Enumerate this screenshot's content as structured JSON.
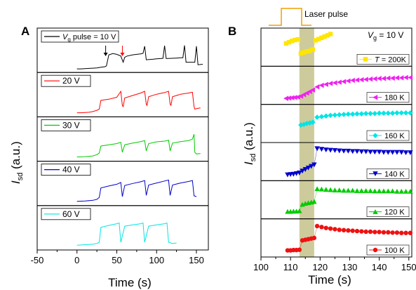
{
  "figure": {
    "panel_a_letter": "A",
    "panel_b_letter": "B",
    "laser_label": "Laser pulse",
    "vg_label_main": "V",
    "vg_label_sub": "g",
    "vg_label_rest": " = 10 V",
    "y_label_main": "I",
    "y_label_sub": "sd",
    "y_label_a_rest": " (a.u.)",
    "y_label_b_rest": " (a.u.)",
    "x_label_a": "Time (s)",
    "x_label_b": "Time (s)"
  },
  "chart_data": [
    {
      "type": "line",
      "panel": "A",
      "xlabel": "Time (s)",
      "ylabel": "Isd (a.u.)",
      "xlim": [
        -50,
        165
      ],
      "xticks": [
        "-50",
        "0",
        "50",
        "100",
        "150"
      ],
      "xtick_values": [
        -50,
        0,
        50,
        100,
        150
      ],
      "first_legend_prefix": "V",
      "first_legend_sub": "g",
      "first_legend_suffix": " pulse = 10 V",
      "series": [
        {
          "name": "",
          "legend": "10 V",
          "color": "#000000",
          "x": [
            0,
            5,
            10,
            15,
            20,
            25,
            30,
            35,
            37,
            40,
            45,
            50,
            55,
            58,
            60,
            63,
            70,
            75,
            80,
            83,
            85,
            87,
            95,
            100,
            105,
            108,
            110,
            112,
            120,
            125,
            130,
            133,
            135,
            137,
            145,
            148,
            150,
            152,
            158
          ],
          "y": [
            0.03,
            0.03,
            0.04,
            0.05,
            0.06,
            0.07,
            0.1,
            0.12,
            0.15,
            0.6,
            0.65,
            0.62,
            0.55,
            0.3,
            0.5,
            0.55,
            0.6,
            0.62,
            0.64,
            0.66,
            0.95,
            0.4,
            0.42,
            0.44,
            0.45,
            0.46,
            0.97,
            0.45,
            0.46,
            0.47,
            0.48,
            0.48,
            0.98,
            0.3,
            0.3,
            0.3,
            0.95,
            0.2,
            0.22
          ]
        },
        {
          "name": "",
          "legend": "20 V",
          "color": "#ff0000",
          "x": [
            0,
            5,
            10,
            15,
            20,
            25,
            28,
            30,
            40,
            50,
            55,
            57,
            58,
            60,
            70,
            80,
            85,
            87,
            88,
            90,
            100,
            110,
            115,
            117,
            118,
            120,
            130,
            140,
            145,
            147,
            148,
            150,
            155
          ],
          "y": [
            0.05,
            0.05,
            0.06,
            0.07,
            0.1,
            0.15,
            0.2,
            0.55,
            0.6,
            0.68,
            0.92,
            0.35,
            0.3,
            0.65,
            0.75,
            0.85,
            0.92,
            0.4,
            0.35,
            0.7,
            0.8,
            0.87,
            0.92,
            0.4,
            0.35,
            0.7,
            0.8,
            0.85,
            0.88,
            0.3,
            0.2,
            0.22,
            0.25
          ]
        },
        {
          "name": "",
          "legend": "30 V",
          "color": "#00cc00",
          "x": [
            0,
            10,
            20,
            25,
            28,
            30,
            40,
            50,
            55,
            57,
            60,
            70,
            80,
            85,
            87,
            90,
            100,
            110,
            115,
            117,
            120,
            130,
            140,
            145,
            147,
            148,
            150,
            155
          ],
          "y": [
            0.06,
            0.07,
            0.1,
            0.15,
            0.22,
            0.5,
            0.55,
            0.6,
            0.65,
            0.25,
            0.55,
            0.62,
            0.68,
            0.72,
            0.3,
            0.6,
            0.67,
            0.7,
            0.74,
            0.3,
            0.62,
            0.68,
            0.72,
            0.78,
            0.98,
            0.25,
            0.18,
            0.2
          ]
        },
        {
          "name": "",
          "legend": "40 V",
          "color": "#0000cc",
          "x": [
            0,
            10,
            20,
            25,
            28,
            30,
            40,
            50,
            55,
            57,
            60,
            70,
            80,
            85,
            87,
            90,
            100,
            110,
            115,
            117,
            120,
            130,
            140,
            145,
            147,
            150
          ],
          "y": [
            0.06,
            0.07,
            0.1,
            0.14,
            0.22,
            0.6,
            0.68,
            0.75,
            0.82,
            0.25,
            0.7,
            0.78,
            0.85,
            0.9,
            0.3,
            0.72,
            0.8,
            0.88,
            0.92,
            0.3,
            0.72,
            0.8,
            0.86,
            0.9,
            0.28,
            0.25
          ]
        },
        {
          "name": "",
          "legend": "60 V",
          "color": "#00e5e5",
          "x": [
            0,
            10,
            20,
            25,
            28,
            30,
            40,
            50,
            53,
            55,
            60,
            70,
            80,
            83,
            85,
            90,
            100,
            110,
            113,
            115,
            120,
            125
          ],
          "y": [
            0.08,
            0.1,
            0.12,
            0.15,
            0.2,
            0.8,
            0.88,
            0.95,
            0.98,
            0.2,
            0.85,
            0.9,
            0.95,
            0.98,
            0.2,
            0.85,
            0.9,
            0.95,
            0.98,
            0.2,
            0.15,
            0.17
          ]
        }
      ]
    },
    {
      "type": "scatter",
      "panel": "B",
      "xlabel": "Time (s)",
      "ylabel": "Isd (a.u.)",
      "xlim": [
        100,
        151
      ],
      "xticks": [
        "100",
        "110",
        "120",
        "130",
        "140",
        "150"
      ],
      "xtick_values": [
        100,
        110,
        120,
        130,
        140,
        150
      ],
      "laser_span": [
        113,
        118
      ],
      "first_legend_prefix": "T",
      "first_legend_suffix": " = 200K",
      "series": [
        {
          "name": "",
          "legend": "200K",
          "color": "#ffe600",
          "marker": "square",
          "x": [
            108.5,
            109.5,
            110.5,
            111.5,
            112.5,
            113.5,
            114.5,
            115.5,
            116.5,
            117.5,
            118.5,
            119.5,
            120.5,
            121.5,
            122.5,
            123.5
          ],
          "y": [
            0.62,
            0.66,
            0.7,
            0.73,
            0.75,
            0.3,
            0.33,
            0.36,
            0.38,
            0.42,
            0.72,
            0.76,
            0.8,
            0.84,
            0.88,
            0.92
          ]
        },
        {
          "name": "",
          "legend": "180 K",
          "color": "#ee22ee",
          "marker": "triangle-left",
          "x": [
            108.5,
            109.5,
            110.5,
            111.5,
            112.5,
            113.5,
            114.5,
            115.5,
            116.5,
            117.5,
            119,
            120.5,
            122,
            123.5,
            125,
            126.5,
            128,
            129.5,
            131,
            132.5,
            134,
            135.5,
            137,
            138.5,
            140,
            141.5,
            143,
            144.5,
            146,
            147.5,
            149,
            150.5
          ],
          "y": [
            0.08,
            0.09,
            0.1,
            0.11,
            0.12,
            0.15,
            0.2,
            0.25,
            0.3,
            0.35,
            0.45,
            0.5,
            0.53,
            0.56,
            0.58,
            0.6,
            0.62,
            0.64,
            0.66,
            0.67,
            0.68,
            0.69,
            0.7,
            0.71,
            0.72,
            0.72,
            0.73,
            0.73,
            0.74,
            0.74,
            0.75,
            0.75
          ]
        },
        {
          "name": "",
          "legend": "160 K",
          "color": "#00e5e5",
          "marker": "diamond",
          "x": [
            113.5,
            114.5,
            115.5,
            116.5,
            117.5,
            119,
            120.5,
            122,
            123.5,
            125,
            126.5,
            128,
            129.5,
            131,
            132.5,
            134,
            135.5,
            137,
            138.5,
            140,
            141.5,
            143,
            144.5,
            146,
            147.5,
            149,
            150.5
          ],
          "y": [
            0.45,
            0.47,
            0.5,
            0.52,
            0.54,
            0.7,
            0.72,
            0.74,
            0.76,
            0.77,
            0.78,
            0.79,
            0.8,
            0.8,
            0.81,
            0.81,
            0.82,
            0.82,
            0.82,
            0.83,
            0.83,
            0.83,
            0.83,
            0.84,
            0.84,
            0.84,
            0.84
          ]
        },
        {
          "name": "",
          "legend": "140 K",
          "color": "#0000cc",
          "marker": "triangle-down",
          "x": [
            109,
            110,
            111,
            112,
            113,
            114,
            115,
            116,
            117,
            118,
            119,
            120.5,
            122,
            123.5,
            125,
            126.5,
            128,
            129.5,
            131,
            132.5,
            134,
            135.5,
            137,
            138.5,
            140,
            141.5,
            143,
            144.5,
            146,
            147.5,
            149,
            150.5
          ],
          "y": [
            0.08,
            0.09,
            0.1,
            0.12,
            0.14,
            0.2,
            0.25,
            0.3,
            0.35,
            0.4,
            0.92,
            0.9,
            0.88,
            0.87,
            0.86,
            0.85,
            0.84,
            0.84,
            0.83,
            0.83,
            0.82,
            0.82,
            0.81,
            0.81,
            0.81,
            0.8,
            0.8,
            0.8,
            0.8,
            0.8,
            0.79,
            0.79
          ]
        },
        {
          "name": "",
          "legend": "120 K",
          "color": "#00cc00",
          "marker": "triangle-up",
          "x": [
            109,
            110,
            111,
            112,
            113,
            114,
            115,
            116,
            117,
            118,
            119,
            120.5,
            122,
            123.5,
            125,
            126.5,
            128,
            129.5,
            131,
            132.5,
            134,
            135.5,
            137,
            138.5,
            140,
            141.5,
            143,
            144.5,
            146,
            147.5,
            149,
            150.5
          ],
          "y": [
            0.12,
            0.12,
            0.13,
            0.13,
            0.14,
            0.35,
            0.38,
            0.4,
            0.42,
            0.44,
            0.85,
            0.84,
            0.83,
            0.82,
            0.81,
            0.81,
            0.8,
            0.8,
            0.8,
            0.79,
            0.79,
            0.79,
            0.79,
            0.78,
            0.78,
            0.78,
            0.78,
            0.78,
            0.77,
            0.77,
            0.77,
            0.77
          ]
        },
        {
          "name": "",
          "legend": "100 K",
          "color": "#ee1111",
          "marker": "circle",
          "x": [
            109,
            110,
            111,
            112,
            113,
            114,
            115,
            116,
            117,
            118,
            119,
            120.5,
            122,
            123.5,
            125,
            126.5,
            128,
            129.5,
            131,
            132.5,
            134,
            135.5,
            137,
            138.5,
            140,
            141.5,
            143,
            144.5,
            146,
            147.5,
            149,
            150.5
          ],
          "y": [
            0.1,
            0.1,
            0.11,
            0.11,
            0.12,
            0.42,
            0.44,
            0.46,
            0.48,
            0.5,
            0.88,
            0.85,
            0.82,
            0.8,
            0.78,
            0.76,
            0.75,
            0.74,
            0.73,
            0.72,
            0.71,
            0.7,
            0.7,
            0.69,
            0.69,
            0.68,
            0.68,
            0.67,
            0.67,
            0.66,
            0.66,
            0.66
          ]
        }
      ]
    }
  ]
}
